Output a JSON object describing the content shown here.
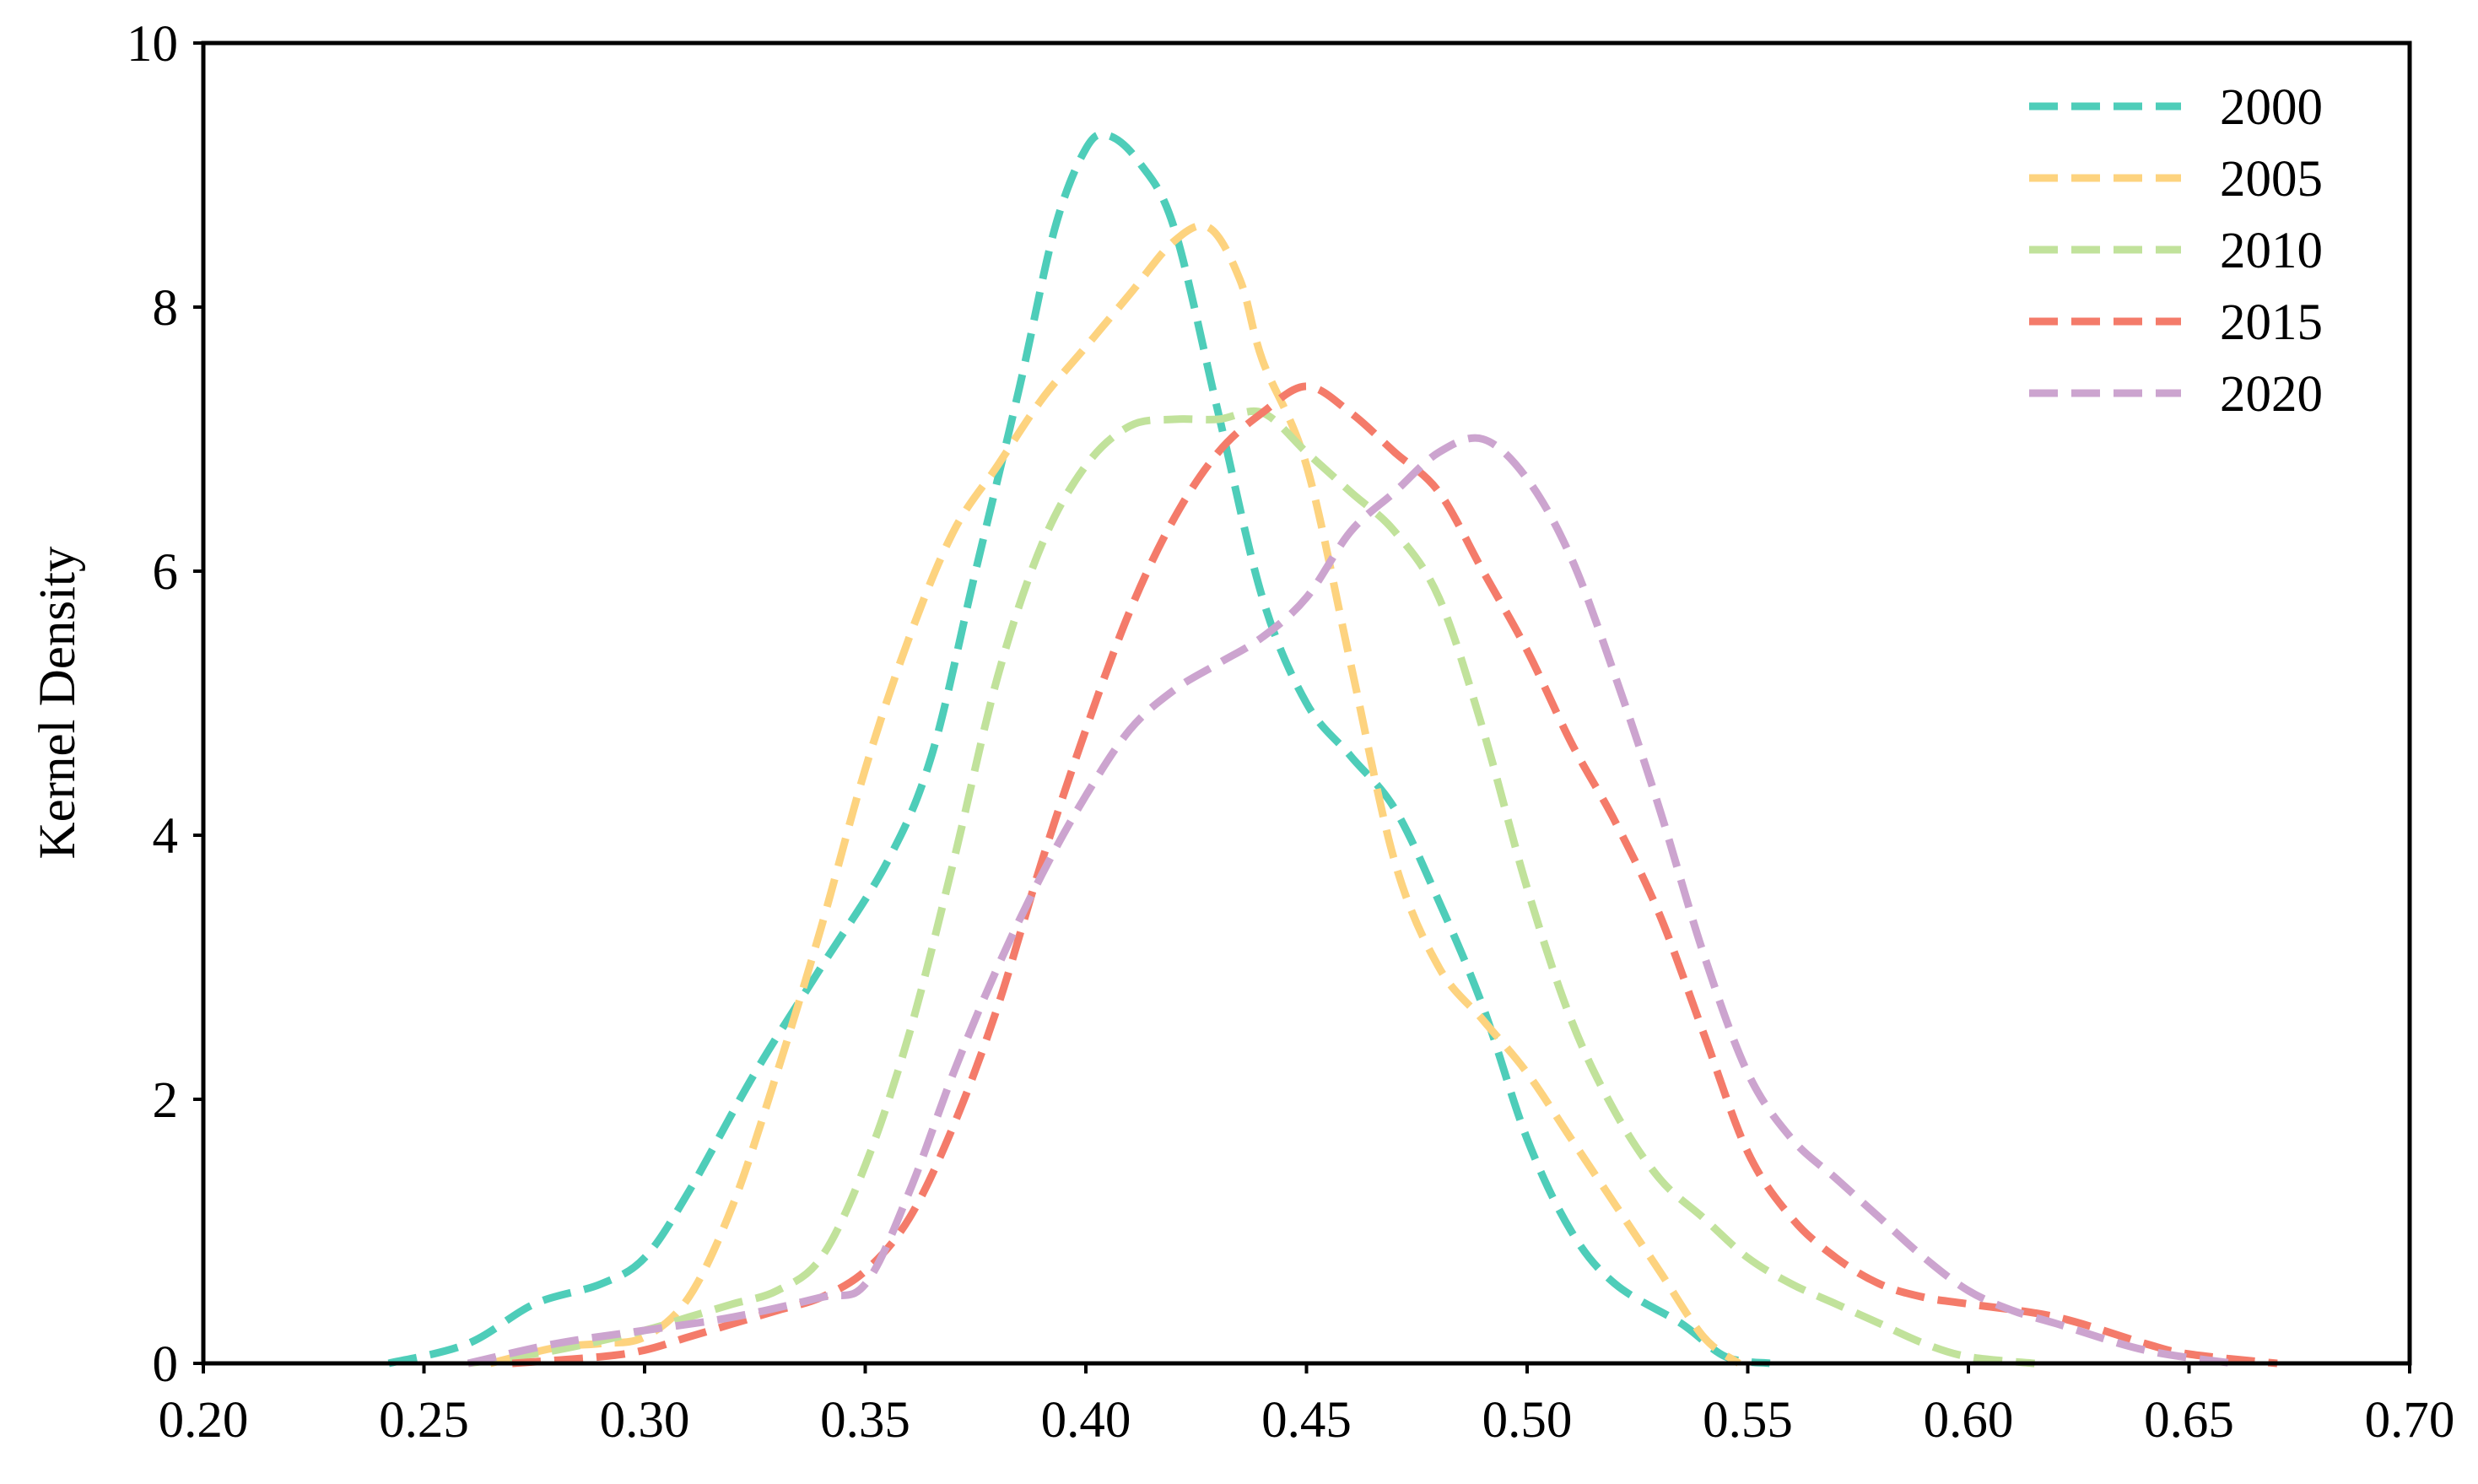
{
  "chart_data": {
    "type": "line",
    "title": "",
    "xlabel": "",
    "ylabel": "Kernel Density",
    "xlim": [
      0.2,
      0.7
    ],
    "ylim": [
      0,
      10
    ],
    "x_ticks": [
      "0.20",
      "0.25",
      "0.30",
      "0.35",
      "0.40",
      "0.45",
      "0.50",
      "0.55",
      "0.60",
      "0.65",
      "0.70"
    ],
    "y_ticks": [
      "0",
      "2",
      "4",
      "6",
      "8",
      "10"
    ],
    "grid": false,
    "legend_position": "top-right",
    "series": [
      {
        "name": "2000",
        "color": "#4ecdb9",
        "points": [
          [
            0.242,
            0
          ],
          [
            0.26,
            0.15
          ],
          [
            0.275,
            0.45
          ],
          [
            0.29,
            0.6
          ],
          [
            0.3,
            0.8
          ],
          [
            0.31,
            1.3
          ],
          [
            0.325,
            2.2
          ],
          [
            0.34,
            3.0
          ],
          [
            0.355,
            3.8
          ],
          [
            0.365,
            4.6
          ],
          [
            0.375,
            6.0
          ],
          [
            0.385,
            7.4
          ],
          [
            0.393,
            8.6
          ],
          [
            0.4,
            9.2
          ],
          [
            0.405,
            9.3
          ],
          [
            0.412,
            9.1
          ],
          [
            0.42,
            8.6
          ],
          [
            0.43,
            7.2
          ],
          [
            0.44,
            5.8
          ],
          [
            0.45,
            5.0
          ],
          [
            0.46,
            4.6
          ],
          [
            0.47,
            4.2
          ],
          [
            0.48,
            3.5
          ],
          [
            0.49,
            2.7
          ],
          [
            0.5,
            1.7
          ],
          [
            0.51,
            1.0
          ],
          [
            0.52,
            0.6
          ],
          [
            0.535,
            0.3
          ],
          [
            0.545,
            0.05
          ],
          [
            0.555,
            0
          ]
        ]
      },
      {
        "name": "2005",
        "color": "#fdd37f",
        "points": [
          [
            0.265,
            0
          ],
          [
            0.28,
            0.12
          ],
          [
            0.29,
            0.15
          ],
          [
            0.3,
            0.2
          ],
          [
            0.31,
            0.5
          ],
          [
            0.32,
            1.2
          ],
          [
            0.33,
            2.2
          ],
          [
            0.34,
            3.3
          ],
          [
            0.35,
            4.5
          ],
          [
            0.36,
            5.5
          ],
          [
            0.37,
            6.3
          ],
          [
            0.38,
            6.8
          ],
          [
            0.39,
            7.3
          ],
          [
            0.4,
            7.7
          ],
          [
            0.41,
            8.1
          ],
          [
            0.42,
            8.5
          ],
          [
            0.428,
            8.6
          ],
          [
            0.435,
            8.2
          ],
          [
            0.44,
            7.6
          ],
          [
            0.45,
            6.8
          ],
          [
            0.46,
            5.3
          ],
          [
            0.47,
            3.8
          ],
          [
            0.48,
            3.0
          ],
          [
            0.49,
            2.6
          ],
          [
            0.5,
            2.2
          ],
          [
            0.51,
            1.7
          ],
          [
            0.52,
            1.2
          ],
          [
            0.53,
            0.7
          ],
          [
            0.54,
            0.2
          ],
          [
            0.548,
            0
          ]
        ]
      },
      {
        "name": "2010",
        "color": "#c1e29b",
        "points": [
          [
            0.26,
            0
          ],
          [
            0.28,
            0.1
          ],
          [
            0.3,
            0.25
          ],
          [
            0.31,
            0.35
          ],
          [
            0.32,
            0.45
          ],
          [
            0.33,
            0.55
          ],
          [
            0.34,
            0.8
          ],
          [
            0.35,
            1.5
          ],
          [
            0.36,
            2.5
          ],
          [
            0.37,
            3.8
          ],
          [
            0.38,
            5.2
          ],
          [
            0.39,
            6.2
          ],
          [
            0.4,
            6.8
          ],
          [
            0.41,
            7.1
          ],
          [
            0.42,
            7.15
          ],
          [
            0.43,
            7.15
          ],
          [
            0.44,
            7.2
          ],
          [
            0.45,
            6.9
          ],
          [
            0.46,
            6.6
          ],
          [
            0.47,
            6.3
          ],
          [
            0.48,
            5.8
          ],
          [
            0.49,
            4.8
          ],
          [
            0.5,
            3.6
          ],
          [
            0.51,
            2.6
          ],
          [
            0.52,
            1.9
          ],
          [
            0.53,
            1.4
          ],
          [
            0.54,
            1.1
          ],
          [
            0.55,
            0.8
          ],
          [
            0.56,
            0.6
          ],
          [
            0.57,
            0.45
          ],
          [
            0.58,
            0.3
          ],
          [
            0.59,
            0.15
          ],
          [
            0.6,
            0.05
          ],
          [
            0.615,
            0
          ]
        ]
      },
      {
        "name": "2015",
        "color": "#f47b6a",
        "points": [
          [
            0.27,
            0
          ],
          [
            0.29,
            0.05
          ],
          [
            0.3,
            0.1
          ],
          [
            0.31,
            0.2
          ],
          [
            0.32,
            0.3
          ],
          [
            0.33,
            0.4
          ],
          [
            0.34,
            0.5
          ],
          [
            0.35,
            0.7
          ],
          [
            0.36,
            1.1
          ],
          [
            0.37,
            1.8
          ],
          [
            0.38,
            2.7
          ],
          [
            0.39,
            3.8
          ],
          [
            0.4,
            4.8
          ],
          [
            0.41,
            5.7
          ],
          [
            0.42,
            6.4
          ],
          [
            0.43,
            6.9
          ],
          [
            0.44,
            7.2
          ],
          [
            0.45,
            7.4
          ],
          [
            0.46,
            7.2
          ],
          [
            0.47,
            6.9
          ],
          [
            0.48,
            6.6
          ],
          [
            0.49,
            6.0
          ],
          [
            0.5,
            5.4
          ],
          [
            0.51,
            4.7
          ],
          [
            0.52,
            4.1
          ],
          [
            0.53,
            3.4
          ],
          [
            0.54,
            2.5
          ],
          [
            0.55,
            1.6
          ],
          [
            0.56,
            1.1
          ],
          [
            0.57,
            0.8
          ],
          [
            0.58,
            0.6
          ],
          [
            0.59,
            0.5
          ],
          [
            0.6,
            0.45
          ],
          [
            0.62,
            0.35
          ],
          [
            0.64,
            0.15
          ],
          [
            0.65,
            0.07
          ],
          [
            0.67,
            0
          ]
        ]
      },
      {
        "name": "2020",
        "color": "#cca4cf",
        "points": [
          [
            0.26,
            0
          ],
          [
            0.28,
            0.15
          ],
          [
            0.3,
            0.25
          ],
          [
            0.32,
            0.35
          ],
          [
            0.34,
            0.5
          ],
          [
            0.35,
            0.6
          ],
          [
            0.36,
            1.3
          ],
          [
            0.37,
            2.2
          ],
          [
            0.38,
            3.0
          ],
          [
            0.39,
            3.7
          ],
          [
            0.4,
            4.3
          ],
          [
            0.41,
            4.8
          ],
          [
            0.42,
            5.1
          ],
          [
            0.43,
            5.3
          ],
          [
            0.44,
            5.5
          ],
          [
            0.45,
            5.8
          ],
          [
            0.46,
            6.3
          ],
          [
            0.47,
            6.6
          ],
          [
            0.48,
            6.9
          ],
          [
            0.49,
            7.0
          ],
          [
            0.5,
            6.7
          ],
          [
            0.51,
            6.1
          ],
          [
            0.52,
            5.2
          ],
          [
            0.53,
            4.2
          ],
          [
            0.54,
            3.1
          ],
          [
            0.55,
            2.2
          ],
          [
            0.56,
            1.7
          ],
          [
            0.57,
            1.4
          ],
          [
            0.58,
            1.1
          ],
          [
            0.59,
            0.8
          ],
          [
            0.6,
            0.55
          ],
          [
            0.61,
            0.4
          ],
          [
            0.62,
            0.3
          ],
          [
            0.64,
            0.1
          ],
          [
            0.66,
            0
          ]
        ]
      }
    ]
  }
}
